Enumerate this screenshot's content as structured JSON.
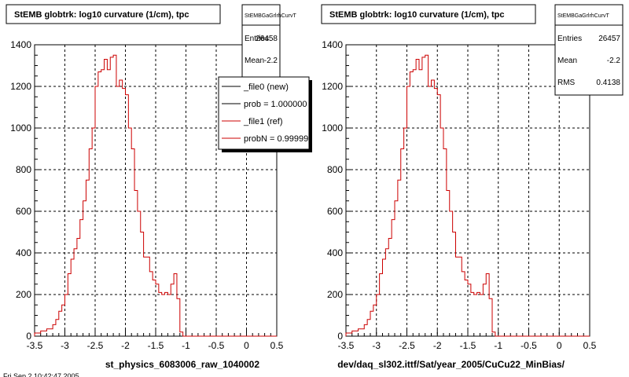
{
  "chart_data": [
    {
      "type": "line",
      "title": "StEMB globtrk: log10 curvature (1/cm), tpc",
      "stats_box": {
        "name": "StEMBGaGrlrhCurvT",
        "rows": [
          {
            "label": "Entries",
            "value": "26458"
          },
          {
            "label": "Mean",
            "value": "-2.2"
          }
        ]
      },
      "legend": {
        "position": "top-right",
        "entries": [
          {
            "label": "_file0 (new)",
            "color": "#000000"
          },
          {
            "label": "prob = 1.000000",
            "color": "#000000"
          },
          {
            "label": "_file1 (ref)",
            "color": "#cc0000"
          },
          {
            "label": "probN = 0.99999",
            "color": "#cc0000"
          }
        ]
      },
      "xlabel": "st_physics_6083006_raw_1040002",
      "ylabel": "",
      "xlim": [
        -3.5,
        0.5
      ],
      "ylim": [
        0,
        1400
      ],
      "grid": true,
      "x_ticks": [
        "-3.5",
        "-3",
        "-2.5",
        "-2",
        "-1.5",
        "-1",
        "-0.5",
        "0",
        "0.5"
      ],
      "y_ticks": [
        "0",
        "200",
        "400",
        "600",
        "800",
        "1000",
        "1200",
        "1400"
      ],
      "series": [
        {
          "color": "#cc0000",
          "bin_edges_start": -3.5,
          "bin_width": 0.05,
          "values": [
            15,
            15,
            25,
            25,
            35,
            35,
            55,
            80,
            120,
            150,
            200,
            300,
            370,
            420,
            470,
            560,
            650,
            750,
            900,
            1000,
            1200,
            1270,
            1280,
            1330,
            1280,
            1340,
            1350,
            1200,
            1230,
            1190,
            1160,
            1000,
            900,
            700,
            600,
            500,
            380,
            380,
            310,
            270,
            250,
            210,
            200,
            210,
            200,
            250,
            300,
            180,
            20,
            0,
            0,
            0,
            0,
            0,
            0,
            0,
            0,
            0,
            0,
            0,
            0,
            0,
            0,
            0,
            0,
            0,
            0,
            0,
            0,
            0,
            0,
            0,
            0,
            0,
            0,
            0,
            0,
            0,
            0,
            0
          ]
        }
      ]
    },
    {
      "type": "line",
      "title": "StEMB globtrk: log10 curvature (1/cm), tpc",
      "stats_box": {
        "name": "StEMBGaGrlrhCurvT",
        "rows": [
          {
            "label": "Entries",
            "value": "26457"
          },
          {
            "label": "Mean",
            "value": "-2.2"
          },
          {
            "label": "RMS",
            "value": "0.4138"
          }
        ]
      },
      "xlabel": "dev/daq_sl302.ittf/Sat/year_2005/CuCu22_MinBias/",
      "ylabel": "",
      "xlim": [
        -3.5,
        0.5
      ],
      "ylim": [
        0,
        1400
      ],
      "grid": true,
      "x_ticks": [
        "-3.5",
        "-3",
        "-2.5",
        "-2",
        "-1.5",
        "-1",
        "-0.5",
        "0",
        "0.5"
      ],
      "y_ticks": [
        "0",
        "200",
        "400",
        "600",
        "800",
        "1000",
        "1200",
        "1400"
      ],
      "series": [
        {
          "color": "#cc0000",
          "bin_edges_start": -3.5,
          "bin_width": 0.05,
          "values": [
            15,
            15,
            25,
            25,
            35,
            35,
            55,
            80,
            120,
            150,
            200,
            300,
            370,
            420,
            470,
            560,
            650,
            750,
            900,
            1000,
            1200,
            1270,
            1280,
            1330,
            1280,
            1340,
            1350,
            1200,
            1230,
            1190,
            1160,
            1000,
            900,
            700,
            600,
            500,
            380,
            380,
            310,
            270,
            250,
            210,
            200,
            210,
            200,
            250,
            300,
            180,
            20,
            0,
            0,
            0,
            0,
            0,
            0,
            0,
            0,
            0,
            0,
            0,
            0,
            0,
            0,
            0,
            0,
            0,
            0,
            0,
            0,
            0,
            0,
            0,
            0,
            0,
            0,
            0,
            0,
            0,
            0,
            0
          ]
        }
      ]
    }
  ],
  "footer": {
    "timestamp": "Fri Sep  2 10:42:47 2005"
  }
}
